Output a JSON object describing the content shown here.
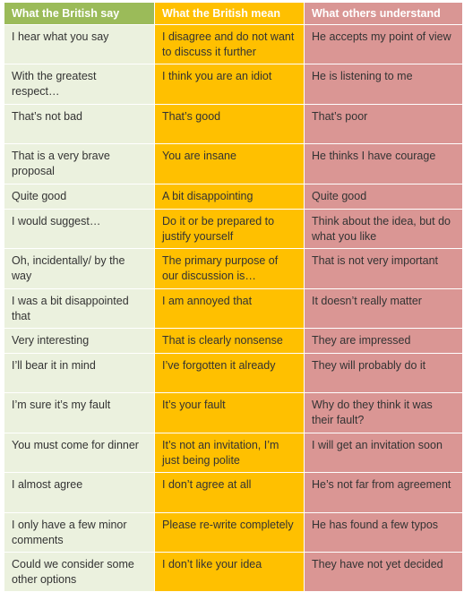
{
  "headers": [
    "What the British say",
    "What the British mean",
    "What others understand"
  ],
  "colors": {
    "header_say": "#9bbb59",
    "header_mean": "#ffc000",
    "header_understand": "#d99694",
    "col_say": "#ebf1de",
    "col_mean": "#ffc000",
    "col_understand": "#da9694"
  },
  "rows": [
    {
      "say": "I hear what you say",
      "mean": "I disagree and do not want to discuss it further",
      "understand": "He accepts my point of view"
    },
    {
      "say": "With the greatest respect…",
      "mean": "I think you are an idiot",
      "understand": "He is listening to me"
    },
    {
      "say": "That’s not bad",
      "mean": "That’s good",
      "understand": "That’s poor"
    },
    {
      "say": "That is a very brave proposal",
      "mean": "You are insane",
      "understand": "He thinks I have courage"
    },
    {
      "say": "Quite good",
      "mean": "A bit disappointing",
      "understand": "Quite good"
    },
    {
      "say": "I would suggest…",
      "mean": "Do it or be prepared to justify yourself",
      "understand": "Think about the idea, but do what you like"
    },
    {
      "say": "Oh, incidentally/ by the way",
      "mean": "The primary purpose of our discussion is…",
      "understand": "That is not very important"
    },
    {
      "say": "I was a bit disappointed that",
      "mean": "I am annoyed that",
      "understand": "It doesn’t really matter"
    },
    {
      "say": "Very interesting",
      "mean": "That is clearly nonsense",
      "understand": "They are impressed"
    },
    {
      "say": "I’ll bear it in mind",
      "mean": "I’ve forgotten it already",
      "understand": "They will probably do it"
    },
    {
      "say": "I’m sure it’s my fault",
      "mean": "It’s your fault",
      "understand": "Why do they think it was their fault?"
    },
    {
      "say": "You must come for dinner",
      "mean": "It’s not an invitation, I’m just being polite",
      "understand": "I will get an invitation soon"
    },
    {
      "say": "I almost agree",
      "mean": "I don’t agree at all",
      "understand": "He’s not far from agreement"
    },
    {
      "say": "I only have a few minor comments",
      "mean": "Please re-write completely",
      "understand": "He has found a few typos"
    },
    {
      "say": "Could we consider some other options",
      "mean": "I don’t like your idea",
      "understand": "They have not yet decided"
    }
  ]
}
